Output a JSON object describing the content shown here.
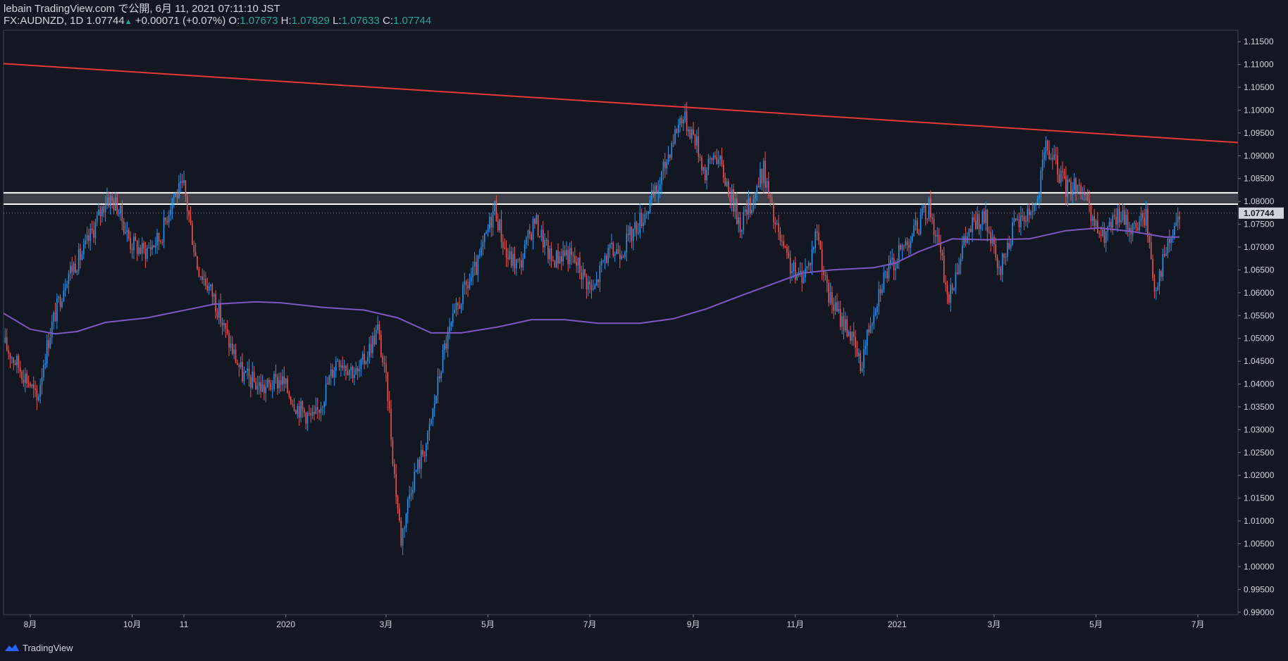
{
  "header": {
    "line1": "lebain TradingView.com で公開, 6月 11, 2021 07:11:10 JST",
    "symbol": "FX:AUDNZD, 1D",
    "price": "1.07744",
    "up_arrow": "▲",
    "change": "+0.00071 (+0.07%)",
    "o_label": "O:",
    "o": "1.07673",
    "h_label": "H:",
    "h": "1.07829",
    "l_label": "L:",
    "l": "1.07633",
    "c_label": "C:",
    "c": "1.07744"
  },
  "footer": {
    "brand": "TradingView",
    "icon": "tradingview-logo-icon"
  },
  "colors": {
    "background": "#131722",
    "up_candle": "#2196f3",
    "down_candle": "#ef5350",
    "ma_line": "#7e57c2",
    "trend_line": "#e53935",
    "zone_line": "#ffffff",
    "zone_fill": "#3c3f48",
    "axis_text": "#d1d4dc",
    "last_price_bg": "#d1d4dc",
    "ohlc_value": "#26a69a"
  },
  "chart_data": {
    "type": "candlestick",
    "symbol": "AUDNZD",
    "timeframe": "1D",
    "last_price": "1.07744",
    "y_ticks": [
      "1.11500",
      "1.11000",
      "1.10500",
      "1.10000",
      "1.09500",
      "1.09000",
      "1.08500",
      "1.08000",
      "1.07500",
      "1.07000",
      "1.06500",
      "1.06000",
      "1.05500",
      "1.05000",
      "1.04500",
      "1.04000",
      "1.03500",
      "1.03000",
      "1.02500",
      "1.02000",
      "1.01500",
      "1.01000",
      "1.00500",
      "1.00000",
      "0.99500",
      "0.99000"
    ],
    "ylim": [
      0.9895,
      1.1175
    ],
    "x_ticks": [
      "8月",
      "10月",
      "11",
      "2020",
      "3月",
      "5月",
      "7月",
      "9月",
      "11月",
      "2021",
      "3月",
      "5月",
      "7月"
    ],
    "x_tick_days": [
      0,
      61,
      92,
      153,
      213,
      274,
      335,
      397,
      458,
      519,
      577,
      638,
      699
    ],
    "x_day_range": [
      -16,
      723
    ],
    "price_path": [
      [
        -16,
        1.049
      ],
      [
        0,
        1.04
      ],
      [
        4,
        1.036
      ],
      [
        8,
        1.045
      ],
      [
        13,
        1.053
      ],
      [
        22,
        1.064
      ],
      [
        32,
        1.069
      ],
      [
        46,
        1.081
      ],
      [
        52,
        1.079
      ],
      [
        60,
        1.071
      ],
      [
        68,
        1.069
      ],
      [
        78,
        1.072
      ],
      [
        85,
        1.081
      ],
      [
        92,
        1.083
      ],
      [
        100,
        1.066
      ],
      [
        110,
        1.059
      ],
      [
        118,
        1.05
      ],
      [
        127,
        1.042
      ],
      [
        140,
        1.039
      ],
      [
        150,
        1.041
      ],
      [
        160,
        1.035
      ],
      [
        170,
        1.032
      ],
      [
        184,
        1.046
      ],
      [
        196,
        1.042
      ],
      [
        208,
        1.052
      ],
      [
        214,
        1.038
      ],
      [
        218,
        1.02
      ],
      [
        222,
        1.006
      ],
      [
        228,
        1.018
      ],
      [
        238,
        1.028
      ],
      [
        248,
        1.048
      ],
      [
        258,
        1.059
      ],
      [
        268,
        1.066
      ],
      [
        278,
        1.079
      ],
      [
        285,
        1.068
      ],
      [
        293,
        1.066
      ],
      [
        302,
        1.076
      ],
      [
        312,
        1.067
      ],
      [
        320,
        1.069
      ],
      [
        328,
        1.066
      ],
      [
        337,
        1.06
      ],
      [
        344,
        1.068
      ],
      [
        355,
        1.07
      ],
      [
        367,
        1.077
      ],
      [
        376,
        1.083
      ],
      [
        384,
        1.093
      ],
      [
        390,
        1.099
      ],
      [
        398,
        1.094
      ],
      [
        404,
        1.086
      ],
      [
        410,
        1.091
      ],
      [
        418,
        1.083
      ],
      [
        425,
        1.075
      ],
      [
        432,
        1.08
      ],
      [
        439,
        1.087
      ],
      [
        445,
        1.076
      ],
      [
        452,
        1.068
      ],
      [
        459,
        1.063
      ],
      [
        466,
        1.066
      ],
      [
        471,
        1.074
      ],
      [
        477,
        1.06
      ],
      [
        484,
        1.055
      ],
      [
        490,
        1.052
      ],
      [
        497,
        1.044
      ],
      [
        503,
        1.054
      ],
      [
        510,
        1.063
      ],
      [
        518,
        1.067
      ],
      [
        524,
        1.071
      ],
      [
        532,
        1.075
      ],
      [
        538,
        1.079
      ],
      [
        544,
        1.07
      ],
      [
        550,
        1.058
      ],
      [
        556,
        1.068
      ],
      [
        564,
        1.075
      ],
      [
        572,
        1.076
      ],
      [
        580,
        1.064
      ],
      [
        588,
        1.074
      ],
      [
        596,
        1.077
      ],
      [
        603,
        1.08
      ],
      [
        608,
        1.092
      ],
      [
        614,
        1.088
      ],
      [
        620,
        1.083
      ],
      [
        628,
        1.084
      ],
      [
        635,
        1.076
      ],
      [
        642,
        1.072
      ],
      [
        652,
        1.077
      ],
      [
        660,
        1.074
      ],
      [
        668,
        1.077
      ],
      [
        673,
        1.061
      ],
      [
        680,
        1.069
      ],
      [
        688,
        1.077
      ]
    ],
    "moving_average": {
      "name": "MA",
      "points": [
        [
          -16,
          1.0555
        ],
        [
          0,
          1.052
        ],
        [
          15,
          1.051
        ],
        [
          28,
          1.0515
        ],
        [
          45,
          1.0535
        ],
        [
          70,
          1.0545
        ],
        [
          90,
          1.056
        ],
        [
          110,
          1.0575
        ],
        [
          135,
          1.058
        ],
        [
          150,
          1.0578
        ],
        [
          175,
          1.0568
        ],
        [
          200,
          1.0562
        ],
        [
          220,
          1.0545
        ],
        [
          240,
          1.0512
        ],
        [
          258,
          1.0512
        ],
        [
          280,
          1.0525
        ],
        [
          300,
          1.0541
        ],
        [
          320,
          1.0541
        ],
        [
          340,
          1.0533
        ],
        [
          365,
          1.0533
        ],
        [
          385,
          1.0543
        ],
        [
          405,
          1.0565
        ],
        [
          425,
          1.0593
        ],
        [
          445,
          1.062
        ],
        [
          462,
          1.0643
        ],
        [
          480,
          1.065
        ],
        [
          505,
          1.0655
        ],
        [
          518,
          1.0665
        ],
        [
          532,
          1.069
        ],
        [
          552,
          1.0718
        ],
        [
          572,
          1.0716
        ],
        [
          598,
          1.0718
        ],
        [
          620,
          1.0736
        ],
        [
          640,
          1.0742
        ],
        [
          660,
          1.0734
        ],
        [
          679,
          1.0722
        ],
        [
          688,
          1.0722
        ]
      ]
    },
    "trend_line": {
      "name": "resistance trend line",
      "from": [
        -16,
        1.1102
      ],
      "to": [
        723,
        1.0929
      ]
    },
    "resistance_zone": {
      "top": 1.0819,
      "bottom": 1.0794
    }
  }
}
